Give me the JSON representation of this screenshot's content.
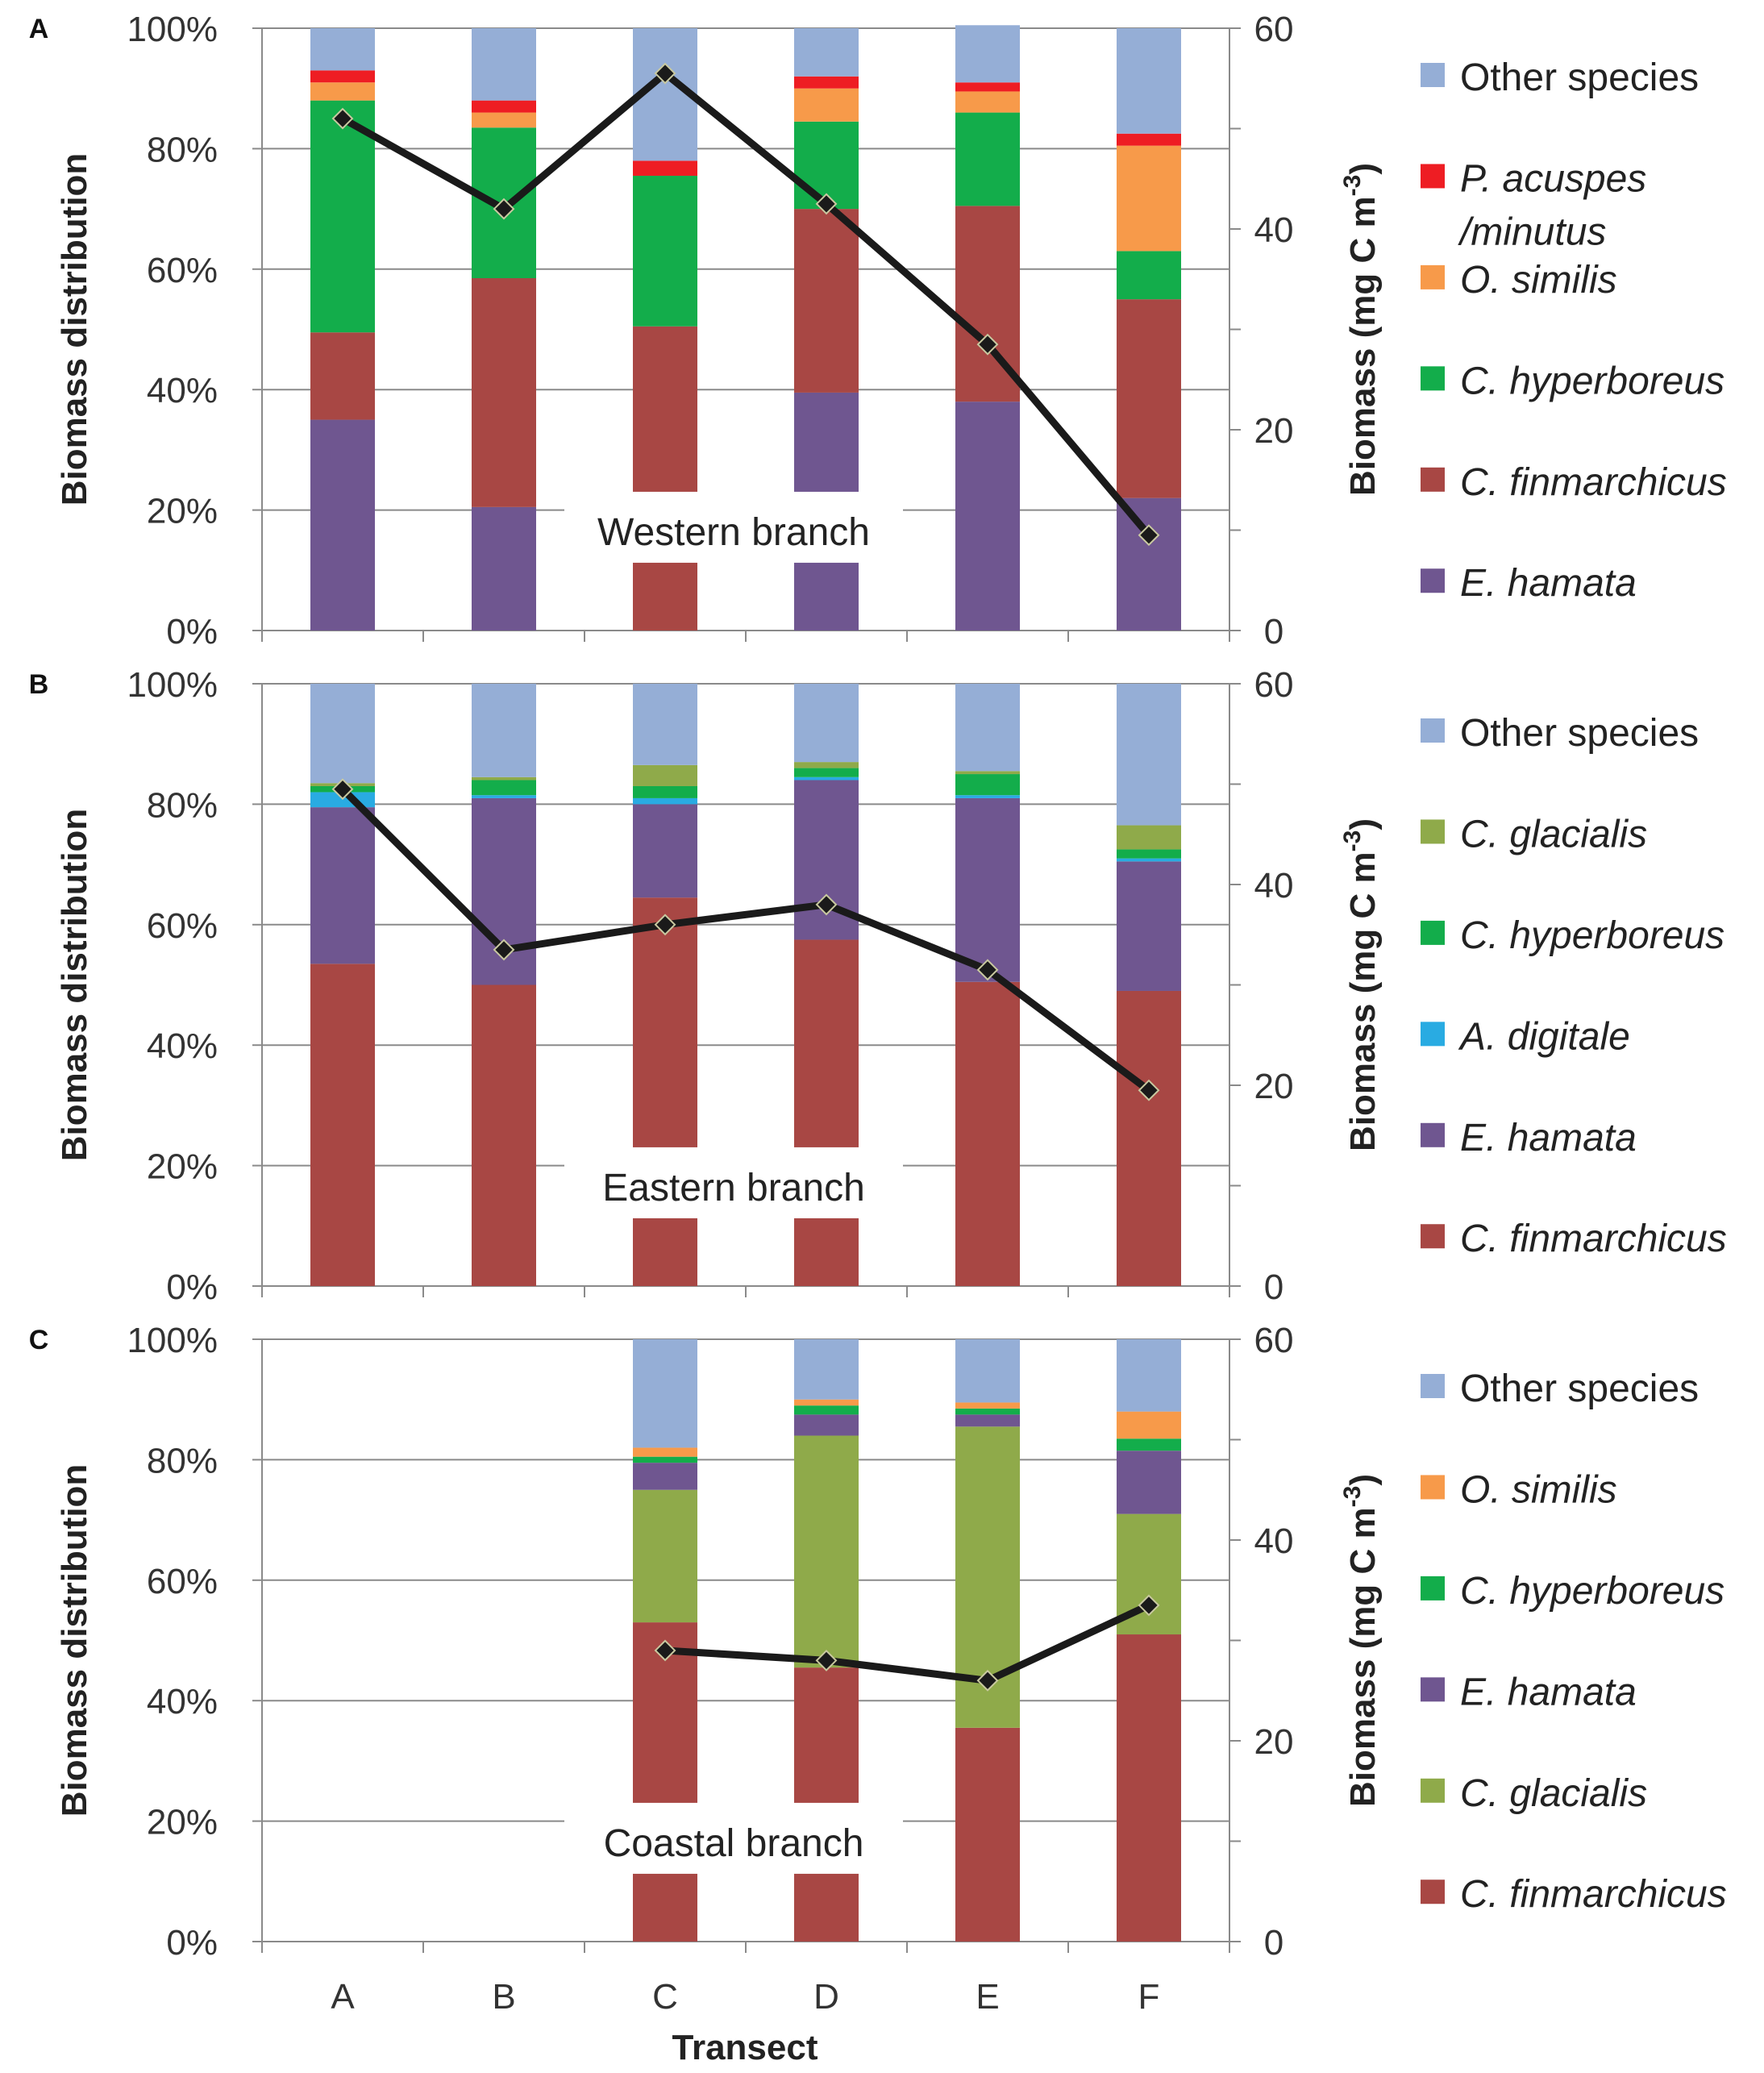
{
  "figure": {
    "xlabel": "Transect"
  },
  "chart_data": [
    {
      "panel": "A",
      "type": "bar",
      "stacked": true,
      "title": "Western branch",
      "categories": [
        "A",
        "B",
        "C",
        "D",
        "E",
        "F"
      ],
      "ylabel": "Biomass distribution",
      "ylim": [
        0,
        100
      ],
      "yticks": [
        "0%",
        "20%",
        "40%",
        "60%",
        "80%",
        "100%"
      ],
      "y2label": "Biomass (mg C m-3)",
      "y2label_parts": [
        "Biomass (mg C m",
        "-3",
        ")"
      ],
      "y2lim": [
        0,
        60
      ],
      "y2ticks": [
        "0",
        "20",
        "40",
        "60"
      ],
      "series": [
        {
          "name": "E. hamata",
          "italic": true,
          "color": "#6F5690",
          "values": [
            35,
            20.5,
            0,
            39.5,
            38,
            22
          ]
        },
        {
          "name": "C. finmarchicus",
          "italic": true,
          "color": "#A84744",
          "values": [
            14.5,
            38,
            50.5,
            30.5,
            32.5,
            33
          ]
        },
        {
          "name": "C. hyperboreus",
          "italic": true,
          "color": "#13AD4B",
          "values": [
            38.5,
            25,
            25,
            14.5,
            15.5,
            8
          ]
        },
        {
          "name": "O. similis",
          "italic": true,
          "color": "#F79A4A",
          "values": [
            3,
            2.5,
            0,
            5.5,
            3.5,
            17.5
          ]
        },
        {
          "name": "P. acuspes /minutus",
          "italic": true,
          "color": "#EE1D23",
          "values": [
            2,
            2,
            2.5,
            2,
            1.5,
            2
          ]
        },
        {
          "name": "Other species",
          "italic": false,
          "color": "#95AED6",
          "values": [
            7,
            12,
            22,
            8,
            9.5,
            17.5
          ]
        }
      ],
      "legend": [
        {
          "label": "Other species",
          "italic": false,
          "color": "#95AED6",
          "lines": [
            "Other species"
          ]
        },
        {
          "label": "P. acuspes /minutus",
          "italic": true,
          "color": "#EE1D23",
          "lines": [
            "P. acuspes",
            "/minutus"
          ]
        },
        {
          "label": "O. similis",
          "italic": true,
          "color": "#F79A4A",
          "lines": [
            "O. similis"
          ]
        },
        {
          "label": "C. hyperboreus",
          "italic": true,
          "color": "#13AD4B",
          "lines": [
            "C. hyperboreus"
          ]
        },
        {
          "label": "C. finmarchicus",
          "italic": true,
          "color": "#A84744",
          "lines": [
            "C. finmarchicus"
          ]
        },
        {
          "label": "E. hamata",
          "italic": true,
          "color": "#6F5690",
          "lines": [
            "E. hamata"
          ]
        }
      ],
      "biomass_line": {
        "name": "Biomass",
        "values": [
          51,
          42,
          55.5,
          42.5,
          28.5,
          9.5
        ]
      }
    },
    {
      "panel": "B",
      "type": "bar",
      "stacked": true,
      "title": "Eastern branch",
      "categories": [
        "A",
        "B",
        "C",
        "D",
        "E",
        "F"
      ],
      "ylabel": "Biomass distribution",
      "ylim": [
        0,
        100
      ],
      "yticks": [
        "0%",
        "20%",
        "40%",
        "60%",
        "80%",
        "100%"
      ],
      "y2label": "Biomass (mg C m-3)",
      "y2label_parts": [
        "Biomass (mg C m",
        "-3",
        ")"
      ],
      "y2lim": [
        0,
        60
      ],
      "y2ticks": [
        "0",
        "20",
        "40",
        "60"
      ],
      "series": [
        {
          "name": "C. finmarchicus",
          "italic": true,
          "color": "#A84744",
          "values": [
            53.5,
            50,
            64.5,
            57.5,
            50.5,
            49
          ]
        },
        {
          "name": "E. hamata",
          "italic": true,
          "color": "#6F5690",
          "values": [
            26,
            31,
            15.5,
            26.5,
            30.5,
            21.5
          ]
        },
        {
          "name": "A. digitale",
          "italic": true,
          "color": "#29ABE2",
          "values": [
            2.5,
            0.5,
            1,
            0.5,
            0.5,
            0.5
          ]
        },
        {
          "name": "C. hyperboreus",
          "italic": true,
          "color": "#13AD4B",
          "values": [
            1,
            2.5,
            2,
            1.5,
            3.5,
            1.5
          ]
        },
        {
          "name": "C. glacialis",
          "italic": true,
          "color": "#8FAA4A",
          "values": [
            0.5,
            0.5,
            3.5,
            1,
            0.5,
            4
          ]
        },
        {
          "name": "Other species",
          "italic": false,
          "color": "#95AED6",
          "values": [
            16.5,
            15.5,
            13.5,
            13,
            14.5,
            23.5
          ]
        }
      ],
      "legend": [
        {
          "label": "Other species",
          "italic": false,
          "color": "#95AED6",
          "lines": [
            "Other species"
          ]
        },
        {
          "label": "C. glacialis",
          "italic": true,
          "color": "#8FAA4A",
          "lines": [
            "C. glacialis"
          ]
        },
        {
          "label": "C. hyperboreus",
          "italic": true,
          "color": "#13AD4B",
          "lines": [
            "C. hyperboreus"
          ]
        },
        {
          "label": "A. digitale",
          "italic": true,
          "color": "#29ABE2",
          "lines": [
            "A. digitale"
          ]
        },
        {
          "label": "E. hamata",
          "italic": true,
          "color": "#6F5690",
          "lines": [
            "E. hamata"
          ]
        },
        {
          "label": "C. finmarchicus",
          "italic": true,
          "color": "#A84744",
          "lines": [
            "C. finmarchicus"
          ]
        }
      ],
      "biomass_line": {
        "name": "Biomass",
        "values": [
          49.5,
          33.5,
          36,
          38,
          31.5,
          19.5
        ]
      }
    },
    {
      "panel": "C",
      "type": "bar",
      "stacked": true,
      "title": "Coastal branch",
      "categories": [
        "A",
        "B",
        "C",
        "D",
        "E",
        "F"
      ],
      "ylabel": "Biomass distribution",
      "ylim": [
        0,
        100
      ],
      "yticks": [
        "0%",
        "20%",
        "40%",
        "60%",
        "80%",
        "100%"
      ],
      "y2label": "Biomass (mg C m-3)",
      "y2label_parts": [
        "Biomass (mg C m",
        "-3",
        ")"
      ],
      "y2lim": [
        0,
        60
      ],
      "y2ticks": [
        "0",
        "20",
        "40",
        "60"
      ],
      "series": [
        {
          "name": "C. finmarchicus",
          "italic": true,
          "color": "#A84744",
          "values": [
            0,
            0,
            53,
            45.5,
            35.5,
            51
          ]
        },
        {
          "name": "C. glacialis",
          "italic": true,
          "color": "#8FAA4A",
          "values": [
            0,
            0,
            22,
            38.5,
            50,
            20
          ]
        },
        {
          "name": "E. hamata",
          "italic": true,
          "color": "#6F5690",
          "values": [
            0,
            0,
            4.5,
            3.5,
            2,
            10.5
          ]
        },
        {
          "name": "C. hyperboreus",
          "italic": true,
          "color": "#13AD4B",
          "values": [
            0,
            0,
            1,
            1.5,
            1,
            2
          ]
        },
        {
          "name": "O. similis",
          "italic": true,
          "color": "#F79A4A",
          "values": [
            0,
            0,
            1.5,
            1,
            1,
            4.5
          ]
        },
        {
          "name": "Other species",
          "italic": false,
          "color": "#95AED6",
          "values": [
            0,
            0,
            18,
            10,
            10.5,
            12
          ]
        }
      ],
      "legend": [
        {
          "label": "Other species",
          "italic": false,
          "color": "#95AED6",
          "lines": [
            "Other species"
          ]
        },
        {
          "label": "O. similis",
          "italic": true,
          "color": "#F79A4A",
          "lines": [
            "O. similis"
          ]
        },
        {
          "label": "C. hyperboreus",
          "italic": true,
          "color": "#13AD4B",
          "lines": [
            "C. hyperboreus"
          ]
        },
        {
          "label": "E. hamata",
          "italic": true,
          "color": "#6F5690",
          "lines": [
            "E. hamata"
          ]
        },
        {
          "label": "C. glacialis",
          "italic": true,
          "color": "#8FAA4A",
          "lines": [
            "C. glacialis"
          ]
        },
        {
          "label": "C. finmarchicus",
          "italic": true,
          "color": "#A84744",
          "lines": [
            "C. finmarchicus"
          ]
        }
      ],
      "biomass_line": {
        "name": "Biomass",
        "values": [
          null,
          null,
          29,
          28,
          26,
          33.5
        ]
      }
    }
  ]
}
